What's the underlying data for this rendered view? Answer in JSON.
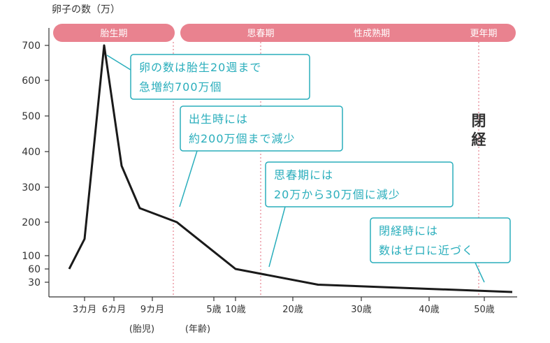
{
  "chart_data": {
    "type": "line",
    "title": "",
    "ylabel": "卵子の数（万）",
    "xlabel": "",
    "y_ticks": [
      "700",
      "600",
      "500",
      "400",
      "300",
      "200",
      "100",
      "60",
      "30"
    ],
    "y_tick_values": [
      700,
      600,
      500,
      400,
      300,
      200,
      100,
      60,
      30
    ],
    "ylim": [
      0,
      750
    ],
    "x_ticks": [
      "3カ月",
      "6カ月",
      "9カ月",
      "5歳",
      "10歳",
      "20歳",
      "30歳",
      "40歳",
      "50歳"
    ],
    "x_sublabels": {
      "fetal": "(胎児)",
      "age": "(年齢)"
    },
    "series": [
      {
        "points": [
          {
            "x": "2カ月",
            "y": 60
          },
          {
            "x": "3カ月",
            "y": 150
          },
          {
            "x": "5カ月",
            "y": 700
          },
          {
            "x": "6.5カ月",
            "y": 360
          },
          {
            "x": "8カ月",
            "y": 240
          },
          {
            "x": "出生",
            "y": 200
          },
          {
            "x": "10歳",
            "y": 60
          },
          {
            "x": "23歳",
            "y": 25
          },
          {
            "x": "55歳",
            "y": 10
          }
        ]
      }
    ],
    "phases": [
      {
        "label": "胎生期"
      },
      {
        "label": "思春期"
      },
      {
        "label": "性成熟期"
      },
      {
        "label": "更年期"
      }
    ],
    "side_label": "閉経",
    "annotations": [
      {
        "lines": [
          "卵の数は胎生20週まで",
          "急増約700万個"
        ]
      },
      {
        "lines": [
          "出生時には",
          "約200万個まで減少"
        ]
      },
      {
        "lines": [
          "思春期には",
          "20万から30万個に減少"
        ]
      },
      {
        "lines": [
          "閉経時には",
          "数はゼロに近づく"
        ]
      }
    ],
    "grid": false,
    "colors": {
      "line": "#1a1a1a",
      "phase_band": "#e9828f",
      "annotation": "#2aaebc",
      "divider": "#e5838f"
    }
  }
}
